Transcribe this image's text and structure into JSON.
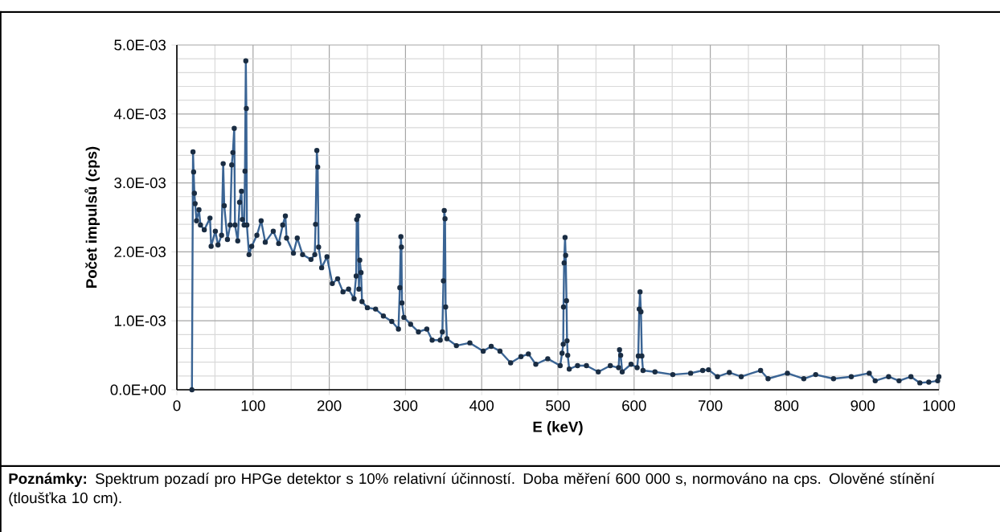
{
  "chart_data": {
    "type": "line",
    "xlabel": "E (keV)",
    "ylabel": "Počet impulsů  (cps)",
    "annotations": [
      "**Poznámky:** Spektrum pozadí pro HPGe detektor s 10% relativní účinností. Doba měření 600 000 s, normováno na cps. Olověné stínění (tloušťka 10 cm)."
    ],
    "xlim": [
      0,
      1000
    ],
    "ylim": [
      0,
      0.005
    ],
    "xticks": [
      0,
      100,
      200,
      300,
      400,
      500,
      600,
      700,
      800,
      900,
      1000
    ],
    "yticks": [
      {
        "value": 0,
        "label": "0.0E+00"
      },
      {
        "value": 0.001,
        "label": "1.0E-03"
      },
      {
        "value": 0.002,
        "label": "2.0E-03"
      },
      {
        "value": 0.003,
        "label": "3.0E-03"
      },
      {
        "value": 0.004,
        "label": "4.0E-03"
      },
      {
        "value": 0.005,
        "label": "5.0E-03"
      }
    ],
    "grid": true,
    "marker": "circle",
    "line_style": "solid",
    "series": [
      {
        "color": "#3a6494",
        "x": [
          19.8,
          21.2,
          22,
          23,
          24,
          25.8,
          29,
          31,
          36,
          43.5,
          45,
          50.5,
          54,
          58.7,
          60.8,
          62.2,
          66.4,
          70,
          72,
          73.5,
          75.3,
          76.3,
          79.9,
          82.3,
          84.8,
          85.9,
          88.3,
          89.4,
          90.5,
          91.2,
          91.9,
          94.7,
          98.2,
          105,
          110.6,
          116,
          126.5,
          133.6,
          138.9,
          142.4,
          144,
          153,
          158,
          165,
          176,
          181,
          182,
          183.7,
          184.8,
          186,
          190,
          197,
          204,
          211,
          218,
          225.4,
          232.5,
          235.3,
          236,
          237.8,
          238.9,
          240,
          241.7,
          243,
          250,
          260.8,
          271,
          282,
          290.8,
          292.6,
          294,
          294.7,
          295.4,
          297.9,
          306.7,
          317,
          328,
          335,
          345.6,
          348.4,
          349.8,
          350.9,
          351.9,
          352.7,
          354.4,
          366.8,
          384.5,
          402,
          412.5,
          424,
          438,
          451.6,
          461.3,
          471,
          486.7,
          503,
          505.5,
          507,
          507.4,
          508.2,
          509.4,
          510.2,
          511.3,
          512,
          512.9,
          514.9,
          525.8,
          537.5,
          553,
          568.8,
          579.7,
          580.9,
          582.4,
          584.4,
          596,
          604,
          605.5,
          606.7,
          607.8,
          609,
          610.2,
          611.7,
          627.4,
          650.8,
          674.2,
          690,
          697.7,
          709.4,
          725,
          740.6,
          766,
          775.8,
          801.2,
          822.7,
          838.3,
          861.7,
          885,
          908.6,
          916.4,
          934,
          947.7,
          963.3,
          975,
          986.7,
          998.4,
          1000
        ],
        "values": [
          0,
          0.00345,
          0.00316,
          0.00285,
          0.0027,
          0.00245,
          0.00261,
          0.00239,
          0.00232,
          0.00249,
          0.00208,
          0.0023,
          0.0021,
          0.00224,
          0.00328,
          0.00267,
          0.00218,
          0.00239,
          0.00326,
          0.00344,
          0.00379,
          0.00239,
          0.00216,
          0.00272,
          0.00288,
          0.00247,
          0.00239,
          0.00317,
          0.00477,
          0.00408,
          0.00239,
          0.00196,
          0.00208,
          0.00224,
          0.00245,
          0.00214,
          0.0023,
          0.00212,
          0.00239,
          0.00252,
          0.0022,
          0.00198,
          0.0022,
          0.00196,
          0.00189,
          0.00196,
          0.0024,
          0.00347,
          0.00323,
          0.00207,
          0.00177,
          0.00193,
          0.00154,
          0.00161,
          0.00142,
          0.00146,
          0.00132,
          0.00165,
          0.00247,
          0.00252,
          0.00146,
          0.00188,
          0.0017,
          0.00128,
          0.00119,
          0.00117,
          0.00107,
          0.00099,
          0.00088,
          0.00148,
          0.00222,
          0.00207,
          0.00126,
          0.00105,
          0.00095,
          0.00084,
          0.00088,
          0.00072,
          0.00072,
          0.00084,
          0.00158,
          0.0026,
          0.00248,
          0.0012,
          0.00074,
          0.00064,
          0.00068,
          0.00056,
          0.00063,
          0.00056,
          0.00039,
          0.00048,
          0.00052,
          0.00037,
          0.00045,
          0.00035,
          0.00053,
          0.00066,
          0.0012,
          0.00184,
          0.00221,
          0.00195,
          0.00129,
          0.00071,
          0.0005,
          0.0003,
          0.00035,
          0.00035,
          0.00026,
          0.00035,
          0.00032,
          0.00058,
          0.0005,
          0.00026,
          0.00037,
          0.00032,
          0.00049,
          0.00117,
          0.00142,
          0.00113,
          0.00049,
          0.00028,
          0.00026,
          0.00022,
          0.00024,
          0.00028,
          0.00029,
          0.00019,
          0.00025,
          0.00019,
          0.00028,
          0.00016,
          0.00024,
          0.00016,
          0.00022,
          0.00016,
          0.00019,
          0.00024,
          0.00013,
          0.00019,
          0.00013,
          0.00019,
          0.0001,
          0.00011,
          0.00013,
          0.00019
        ]
      }
    ]
  }
}
